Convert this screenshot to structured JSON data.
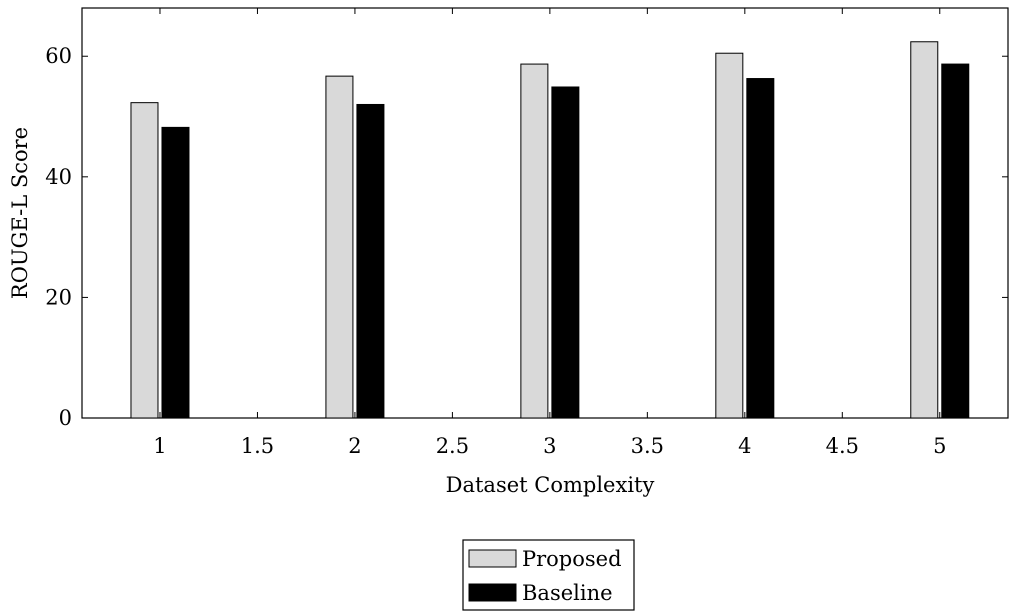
{
  "chart_data": {
    "type": "bar",
    "title": "",
    "xlabel": "Dataset Complexity",
    "ylabel": "ROUGE-L Score",
    "x": [
      1,
      2,
      3,
      4,
      5
    ],
    "xlim": [
      0.6,
      5.35
    ],
    "ylim": [
      0,
      68
    ],
    "xticks": [
      1,
      1.5,
      2,
      2.5,
      3,
      3.5,
      4,
      4.5,
      5
    ],
    "xtick_labels": [
      "1",
      "1.5",
      "2",
      "2.5",
      "3",
      "3.5",
      "4",
      "4.5",
      "5"
    ],
    "yticks": [
      0,
      20,
      40,
      60
    ],
    "ytick_labels": [
      "0",
      "20",
      "40",
      "60"
    ],
    "grid": false,
    "legend_position": "bottom-center",
    "series": [
      {
        "name": "Proposed",
        "values": [
          52.3,
          56.7,
          58.7,
          60.5,
          62.4
        ],
        "color": "#d9d9d9"
      },
      {
        "name": "Baseline",
        "values": [
          48.2,
          52.0,
          54.9,
          56.3,
          58.7
        ],
        "color": "#000000"
      }
    ]
  }
}
